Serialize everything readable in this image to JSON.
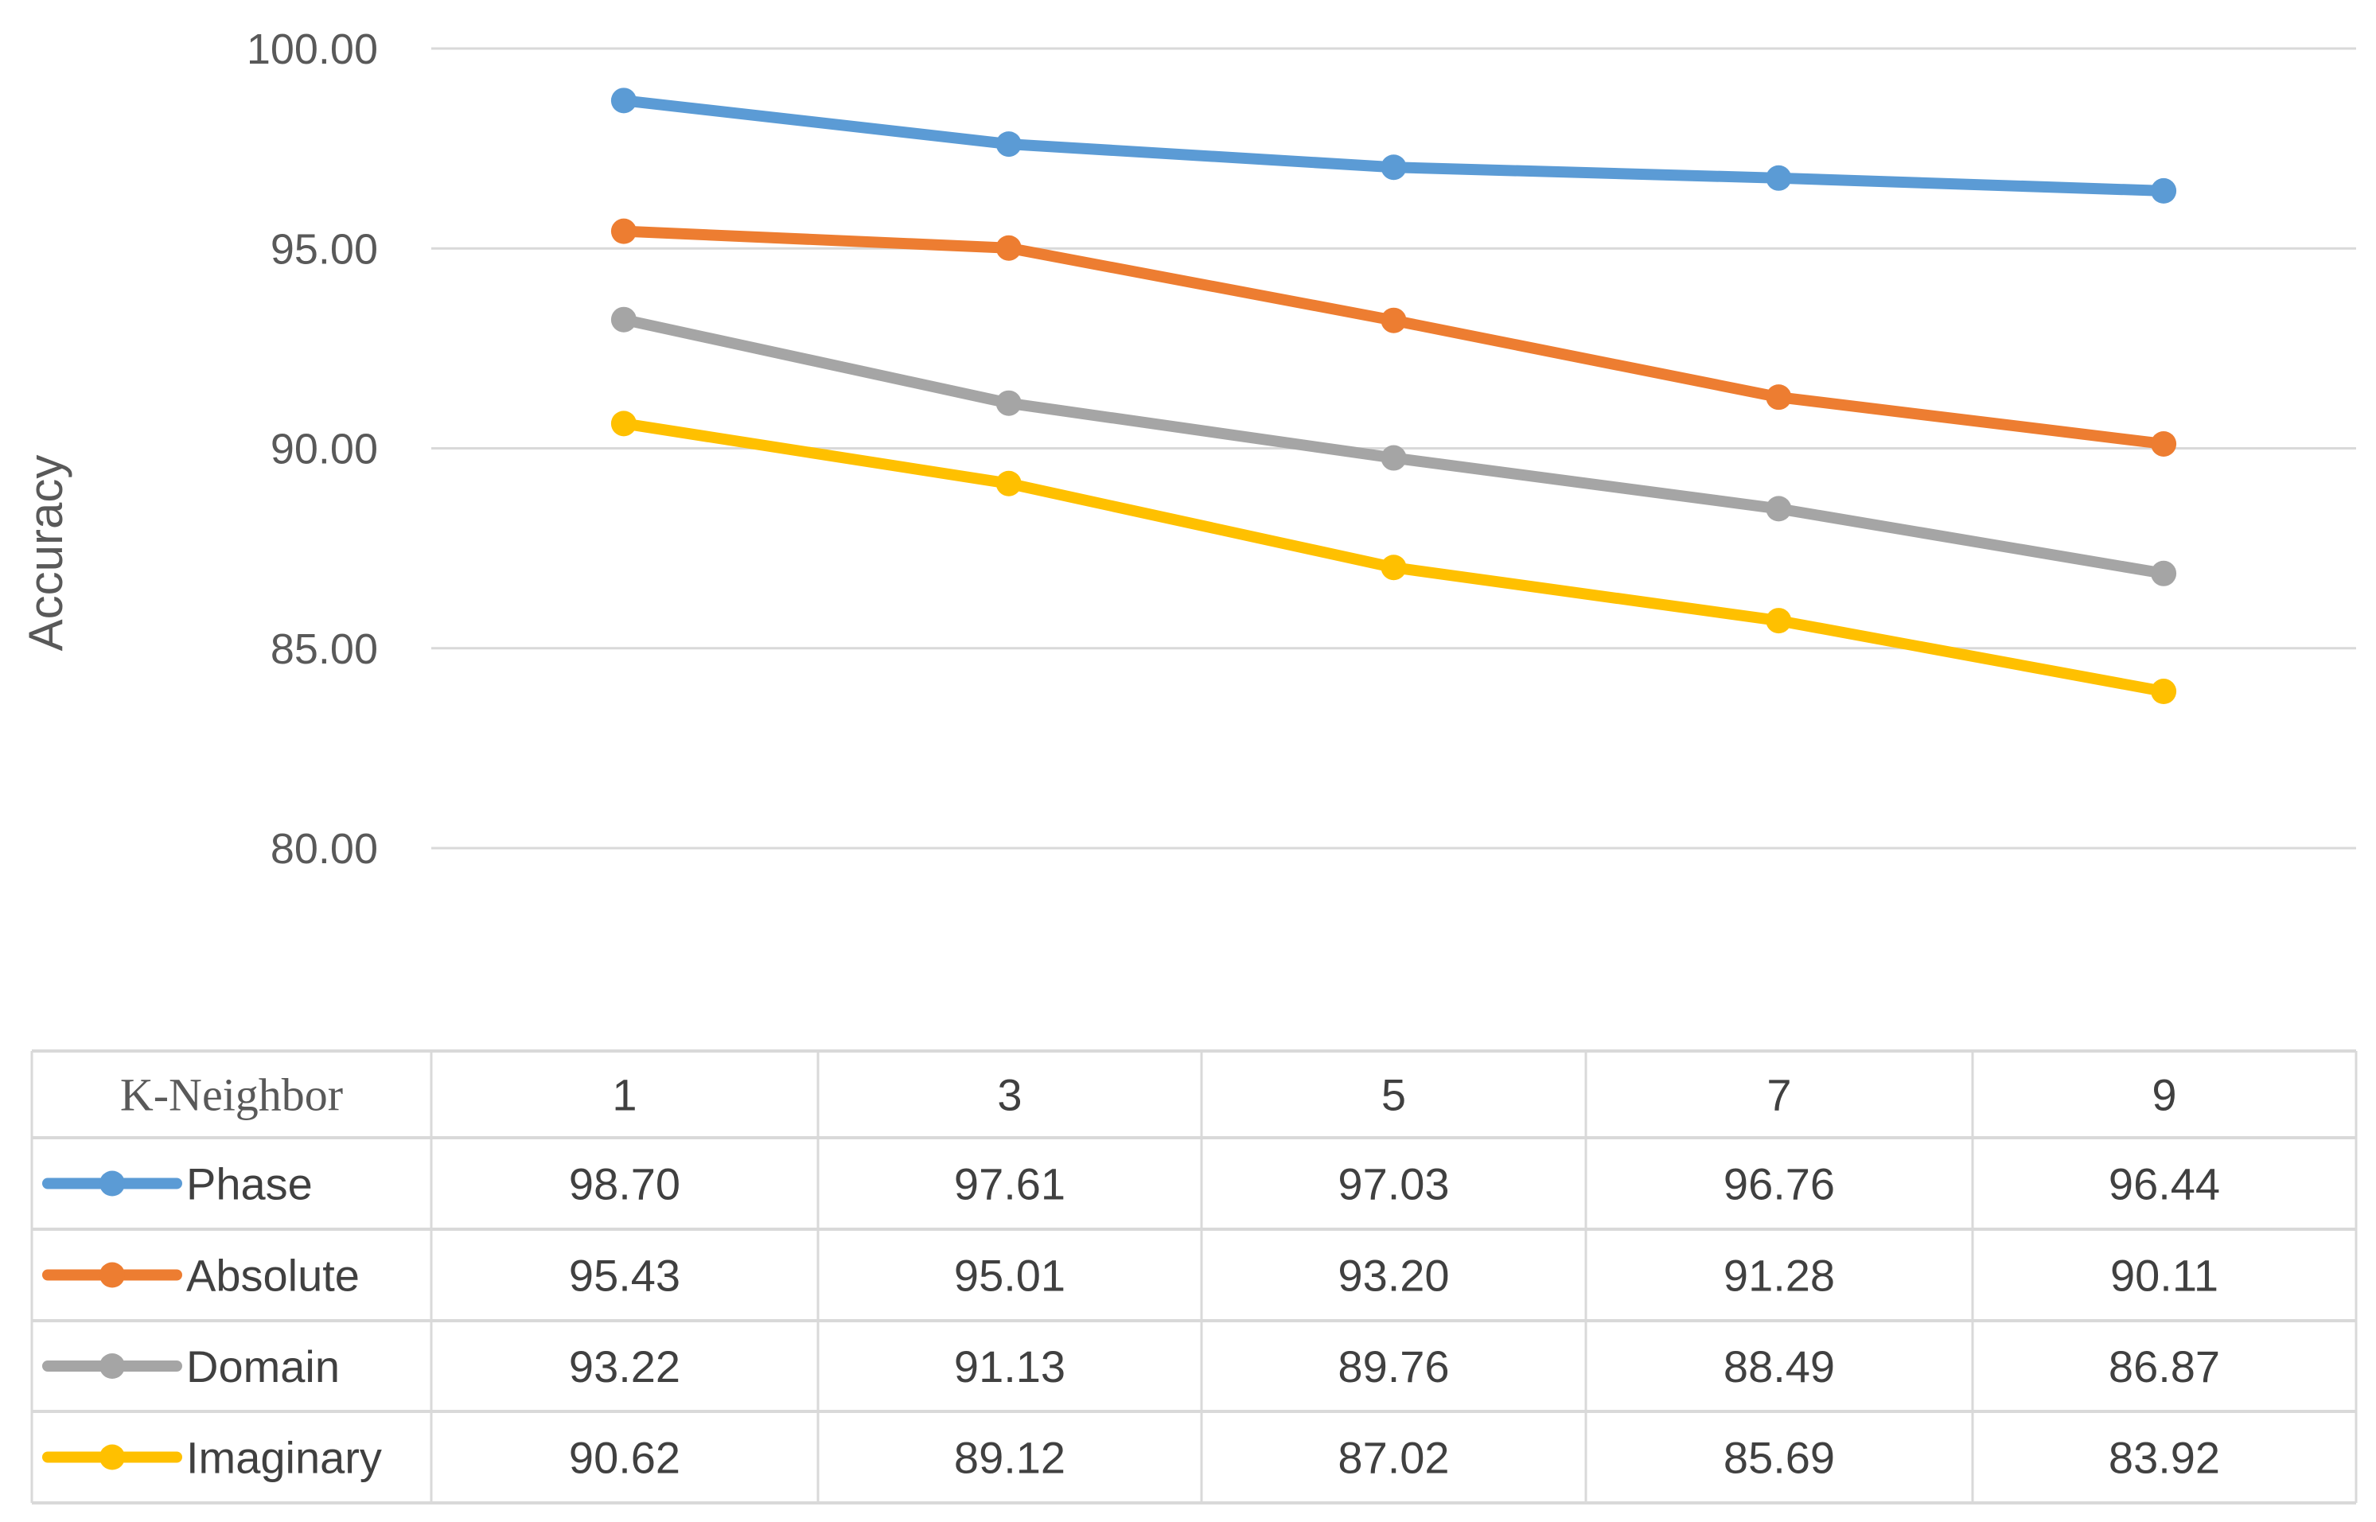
{
  "chart_data": {
    "type": "line",
    "title": "",
    "xlabel": "K-Neighbor",
    "ylabel": "Accuracy",
    "categories": [
      "1",
      "3",
      "5",
      "7",
      "9"
    ],
    "ylim": [
      80,
      100
    ],
    "yticks": [
      "80.00",
      "85.00",
      "90.00",
      "95.00",
      "100.00"
    ],
    "grid": true,
    "legend": "data-table-below",
    "series": [
      {
        "name": "Phase",
        "color": "#5B9BD5",
        "values": [
          98.7,
          97.61,
          97.03,
          96.76,
          96.44
        ],
        "labels": [
          "98.70",
          "97.61",
          "97.03",
          "96.76",
          "96.44"
        ]
      },
      {
        "name": "Absolute",
        "color": "#ED7D31",
        "values": [
          95.43,
          95.01,
          93.2,
          91.28,
          90.11
        ],
        "labels": [
          "95.43",
          "95.01",
          "93.20",
          "91.28",
          "90.11"
        ]
      },
      {
        "name": "Domain",
        "color": "#A5A5A5",
        "values": [
          93.22,
          91.13,
          89.76,
          88.49,
          86.87
        ],
        "labels": [
          "93.22",
          "91.13",
          "89.76",
          "88.49",
          "86.87"
        ]
      },
      {
        "name": "Imaginary",
        "color": "#FFC000",
        "values": [
          90.62,
          89.12,
          87.02,
          85.69,
          83.92
        ],
        "labels": [
          "90.62",
          "89.12",
          "87.02",
          "85.69",
          "83.92"
        ]
      }
    ]
  }
}
